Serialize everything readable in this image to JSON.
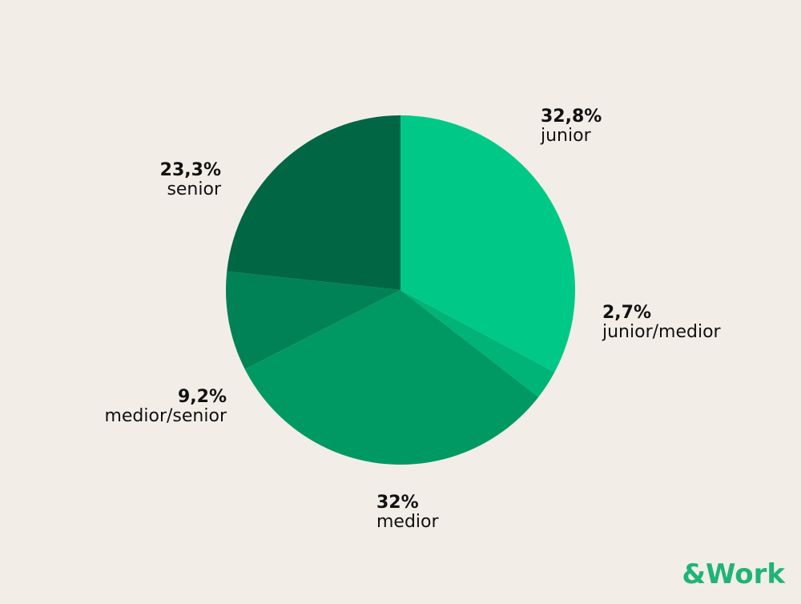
{
  "chart_data": {
    "type": "pie",
    "categories": [
      "junior",
      "junior/medior",
      "medior",
      "medior/senior",
      "senior"
    ],
    "values": [
      32.8,
      2.7,
      32,
      9.2,
      23.3
    ],
    "value_labels": [
      "32,8%",
      "2,7%",
      "32%",
      "9,2%",
      "23,3%"
    ],
    "colors": [
      "#00c987",
      "#00b377",
      "#009964",
      "#008256",
      "#006644"
    ]
  },
  "logo": "&Work"
}
